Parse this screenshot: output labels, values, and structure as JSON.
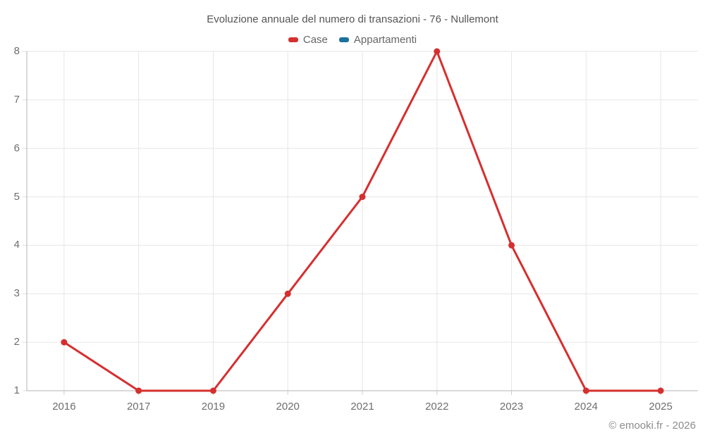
{
  "chart_data": {
    "type": "line",
    "title": "Evoluzione annuale del numero di transazioni - 76 - Nullemont",
    "categories": [
      "2016",
      "2017",
      "2019",
      "2020",
      "2021",
      "2022",
      "2023",
      "2024",
      "2025"
    ],
    "series": [
      {
        "name": "Case",
        "color": "#d62f2f",
        "values": [
          2,
          1,
          1,
          3,
          5,
          8,
          4,
          1,
          1
        ]
      },
      {
        "name": "Appartamenti",
        "color": "#1a709e",
        "values": []
      }
    ],
    "ylim": [
      1,
      8
    ],
    "yticks": [
      1,
      2,
      3,
      4,
      5,
      6,
      7,
      8
    ],
    "grid": true,
    "legend_position": "top",
    "xlabel": "",
    "ylabel": ""
  },
  "footer": {
    "credit": "© emooki.fr - 2026"
  }
}
